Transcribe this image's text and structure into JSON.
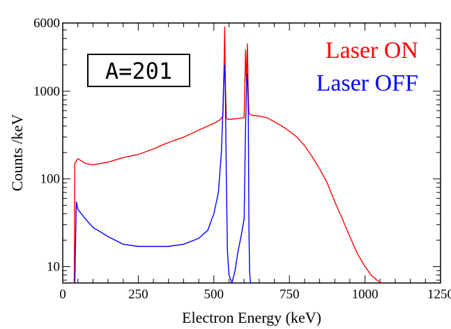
{
  "chart_data": {
    "type": "line",
    "title": "",
    "xlabel": "Electron Energy (keV)",
    "ylabel": "Counts  /keV",
    "xlim": [
      0,
      1250
    ],
    "ylim": [
      6.5,
      6000
    ],
    "log_y": true,
    "grid": false,
    "x_ticks": [
      "0",
      "250",
      "500",
      "750",
      "1000",
      "1250"
    ],
    "y_ticks": [
      "10",
      "100",
      "1000",
      "6000"
    ],
    "annotation": "A=201",
    "legend_position": "top-right",
    "series": [
      {
        "name": "Laser ON",
        "color": "#ff0000",
        "x": [
          30,
          38,
          40,
          50,
          75,
          100,
          150,
          200,
          250,
          300,
          325,
          350,
          400,
          450,
          500,
          520,
          530,
          533,
          536,
          538,
          541,
          545,
          560,
          580,
          600,
          605,
          608,
          611,
          614,
          616,
          618,
          621,
          630,
          650,
          675,
          700,
          725,
          750,
          775,
          800,
          825,
          850,
          875,
          900,
          925,
          950,
          975,
          1000,
          1010,
          1020,
          1030,
          1040,
          1050,
          1060
        ],
        "y": [
          6.5,
          6.5,
          150,
          170,
          150,
          145,
          155,
          175,
          190,
          220,
          240,
          260,
          300,
          360,
          430,
          470,
          520,
          1400,
          5500,
          1300,
          500,
          480,
          480,
          490,
          500,
          3000,
          1200,
          3500,
          900,
          560,
          550,
          540,
          530,
          520,
          500,
          450,
          400,
          350,
          300,
          240,
          180,
          130,
          90,
          55,
          35,
          22,
          14,
          10,
          9,
          8,
          7.5,
          7,
          6.6,
          6.5
        ]
      },
      {
        "name": "Laser OFF",
        "color": "#0000ff",
        "x": [
          38,
          40,
          45,
          50,
          75,
          100,
          150,
          200,
          250,
          300,
          350,
          400,
          450,
          480,
          500,
          515,
          525,
          530,
          533,
          536,
          538,
          541,
          545,
          550,
          560,
          570,
          580,
          590,
          600,
          605,
          608,
          611,
          614,
          616,
          618,
          621,
          624,
          630
        ],
        "y": [
          6.5,
          6.5,
          55,
          45,
          35,
          28,
          22,
          18,
          17,
          17,
          17,
          18,
          21,
          26,
          40,
          70,
          200,
          600,
          1400,
          2000,
          1000,
          120,
          15,
          8,
          6.5,
          9,
          15,
          22,
          35,
          400,
          1100,
          1600,
          600,
          30,
          9,
          6.5,
          6.5,
          6.5
        ]
      }
    ]
  }
}
